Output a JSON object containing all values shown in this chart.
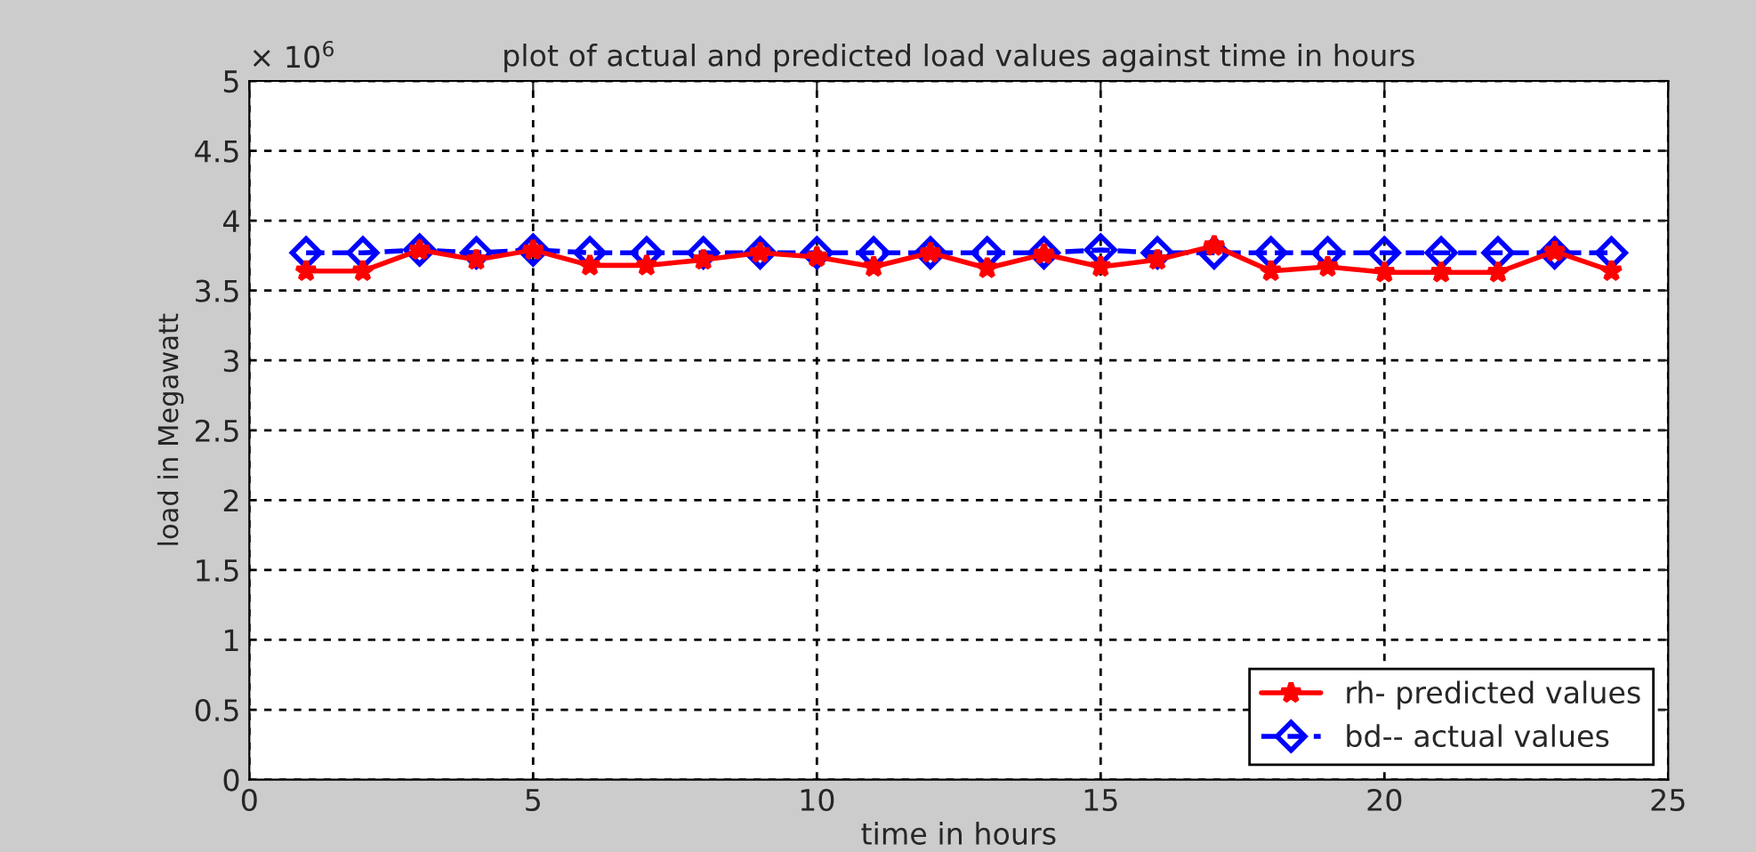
{
  "chart_data": {
    "type": "line",
    "title": "plot of actual and predicted load values against time in hours",
    "xlabel": "time in hours",
    "ylabel": "load in Megawatt",
    "annotations": [
      "× 10$^{6}$"
    ],
    "x": [
      1,
      2,
      3,
      4,
      5,
      6,
      7,
      8,
      9,
      10,
      11,
      12,
      13,
      14,
      15,
      16,
      17,
      18,
      19,
      20,
      21,
      22,
      23,
      24
    ],
    "series": [
      {
        "name": "rh- predicted values",
        "color": "#ff0000",
        "marker": "star",
        "line_style": "solid",
        "values": [
          3.64,
          3.64,
          3.79,
          3.72,
          3.79,
          3.68,
          3.68,
          3.72,
          3.77,
          3.74,
          3.67,
          3.77,
          3.66,
          3.76,
          3.67,
          3.72,
          3.82,
          3.64,
          3.67,
          3.63,
          3.63,
          3.63,
          3.78,
          3.64
        ]
      },
      {
        "name": "bd-- actual values",
        "color": "#0000ff",
        "marker": "diamond",
        "line_style": "dashed",
        "values": [
          3.77,
          3.77,
          3.79,
          3.77,
          3.79,
          3.77,
          3.77,
          3.77,
          3.77,
          3.77,
          3.77,
          3.77,
          3.77,
          3.77,
          3.79,
          3.77,
          3.77,
          3.77,
          3.77,
          3.77,
          3.77,
          3.77,
          3.77,
          3.77
        ]
      }
    ],
    "xlim": [
      0,
      25
    ],
    "xticks": [
      0,
      5,
      10,
      15,
      20,
      25
    ],
    "ylim": [
      0,
      5
    ],
    "yticks": [
      0,
      0.5,
      1,
      1.5,
      2,
      2.5,
      3,
      3.5,
      4,
      4.5,
      5
    ],
    "grid": true,
    "legend": "bottom right"
  }
}
